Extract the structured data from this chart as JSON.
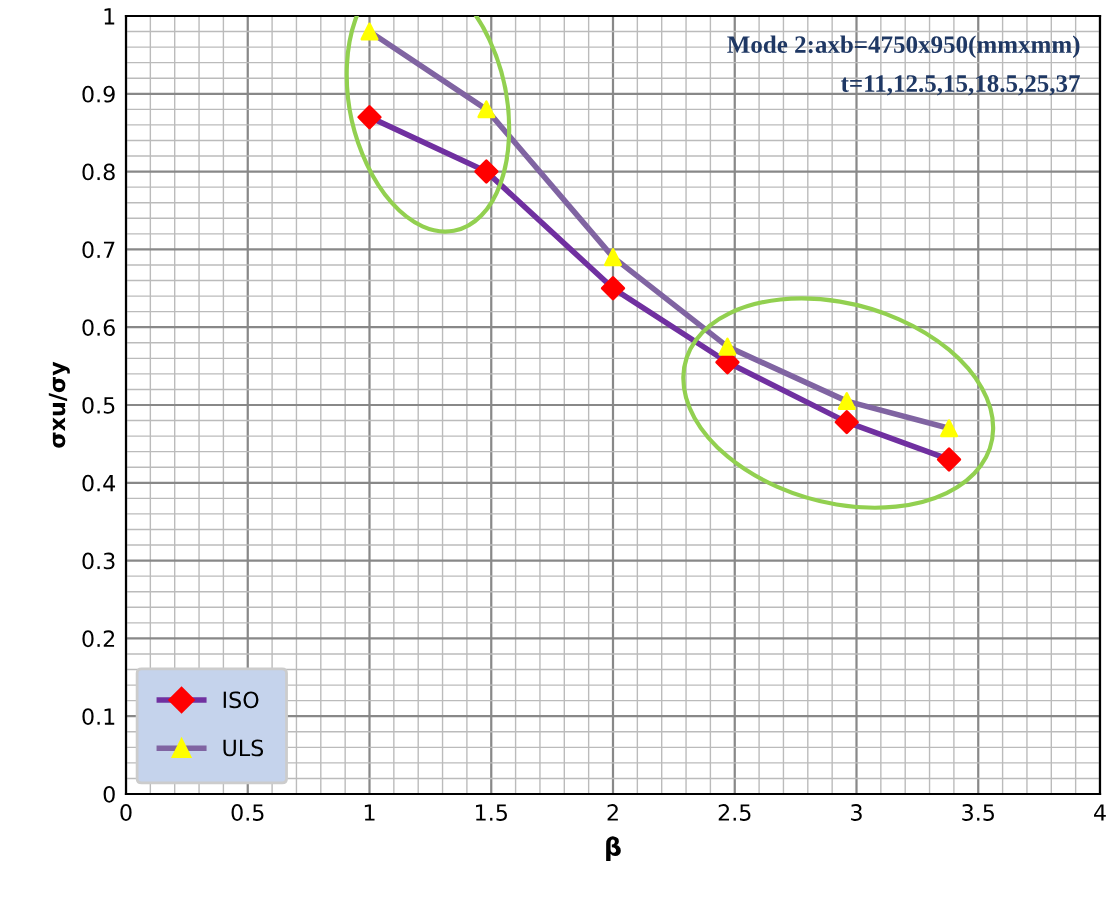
{
  "chart_data": {
    "type": "line",
    "xlabel": "β",
    "ylabel": "σxu/σy",
    "annotations": [
      "Mode 2:axb=4750x950(mmxmm)",
      "t=11,12.5,15,18.5,25,37"
    ],
    "series": [
      {
        "name": "ISO",
        "color": "#7030a0",
        "marker": "diamond",
        "colors": [
          "#ff0000",
          "#ff0000",
          "#ff0000",
          "#ff0000",
          "#ff0000",
          "#ff0000"
        ],
        "x": [
          1.0,
          1.48,
          2.0,
          2.47,
          2.96,
          3.38
        ],
        "values": [
          0.87,
          0.8,
          0.65,
          0.555,
          0.478,
          0.43
        ]
      },
      {
        "name": "ULS",
        "color": "#8064a2",
        "marker": "triangle",
        "colors": [
          "#ffff00",
          "#ffff00",
          "#ffff00",
          "#ffff00",
          "#ffff00",
          "#ffff00"
        ],
        "x": [
          1.0,
          1.48,
          2.0,
          2.47,
          2.96,
          3.38
        ],
        "values": [
          0.98,
          0.88,
          0.69,
          0.575,
          0.505,
          0.47
        ]
      }
    ],
    "xlim": [
      0,
      4
    ],
    "xticks": [
      0,
      0.5,
      1,
      1.5,
      2,
      2.5,
      3,
      3.5,
      4
    ],
    "ylim": [
      0,
      1
    ],
    "yticks": [
      0,
      0.1,
      0.2,
      0.3,
      0.4,
      0.5,
      0.6,
      0.7,
      0.8,
      0.9,
      1
    ],
    "grid": true,
    "legend": "bottom left",
    "line_style": "solid"
  }
}
